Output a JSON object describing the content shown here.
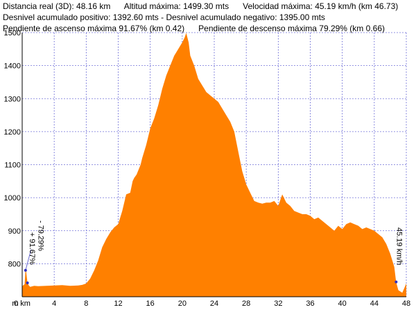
{
  "header": {
    "distance": "Distancia real (3D): 48.16 km",
    "max_altitude": "Altitud máxima: 1499.30 mts",
    "max_speed": "Velocidad máxima: 45.19 km/h (km 46.73)",
    "climb": "Desnivel acumulado positivo: 1392.60 mts - Desnivel acumulado negativo: 1395.00 mts",
    "max_ascent_slope": "Pendiente de ascenso máxima 91.67% (km 0.42)",
    "max_descent_slope": "Pendiente de descenso máxima 79.29% (km 0.66)"
  },
  "chart_data": {
    "type": "area",
    "x_unit": "km",
    "y_unit": "m",
    "xlim": [
      0,
      48
    ],
    "ylim": [
      700,
      1500
    ],
    "x_ticks": [
      0,
      4,
      8,
      12,
      16,
      20,
      24,
      28,
      32,
      36,
      40,
      44,
      48
    ],
    "y_ticks": [
      800,
      900,
      1000,
      1100,
      1200,
      1300,
      1400,
      1500
    ],
    "y_tick_labels": [
      "800",
      "900",
      "1000",
      "1100",
      "1200",
      "1300",
      "1400",
      "1500"
    ],
    "x_tick_labels": [
      "0 km",
      "4",
      "8",
      "12",
      "16",
      "20",
      "24",
      "28",
      "32",
      "36",
      "40",
      "44",
      "48"
    ],
    "axis_origin_label": "m",
    "grid": true,
    "fill_color": "#ff8000",
    "grid_color": "#7070d8",
    "x": [
      0,
      0.3,
      0.42,
      0.5,
      0.66,
      0.8,
      1,
      1.5,
      2,
      3,
      4,
      5,
      6,
      7,
      7.5,
      8,
      8.5,
      9,
      9.5,
      10,
      10.5,
      11,
      11.5,
      12,
      12.5,
      13,
      13.5,
      13.8,
      14,
      14.3,
      14.8,
      15,
      15.5,
      16,
      16.5,
      17,
      17.5,
      18,
      18.5,
      19,
      19.5,
      20,
      20.3,
      20.5,
      20.8,
      21,
      21.5,
      22,
      22.5,
      23,
      23.5,
      24,
      24.5,
      25,
      25.5,
      26,
      26.5,
      27,
      27.5,
      28,
      28.5,
      29,
      29.5,
      30,
      30.5,
      31,
      31.5,
      32,
      32.5,
      33,
      33.5,
      34,
      34.5,
      35,
      35.5,
      36,
      36.5,
      37,
      37.5,
      38,
      38.5,
      39,
      39.5,
      40,
      40.5,
      41,
      41.5,
      42,
      42.5,
      43,
      43.5,
      44,
      44.5,
      45,
      45.5,
      46,
      46.5,
      46.73,
      47,
      47.5,
      48
    ],
    "y": [
      732,
      738,
      780,
      775,
      742,
      735,
      730,
      733,
      732,
      733,
      734,
      735,
      733,
      734,
      736,
      740,
      755,
      780,
      810,
      850,
      875,
      895,
      910,
      920,
      960,
      1010,
      1015,
      1050,
      1060,
      1070,
      1100,
      1120,
      1160,
      1210,
      1240,
      1280,
      1330,
      1370,
      1400,
      1430,
      1450,
      1470,
      1485,
      1499,
      1470,
      1430,
      1400,
      1360,
      1340,
      1320,
      1310,
      1300,
      1290,
      1270,
      1250,
      1230,
      1200,
      1140,
      1080,
      1040,
      1015,
      990,
      985,
      982,
      985,
      985,
      990,
      975,
      1010,
      985,
      975,
      960,
      955,
      950,
      950,
      945,
      935,
      940,
      930,
      920,
      910,
      900,
      915,
      905,
      920,
      925,
      920,
      915,
      905,
      910,
      905,
      900,
      890,
      880,
      860,
      830,
      790,
      745,
      720,
      712,
      740
    ],
    "annotations": [
      {
        "text": "- 79.29%",
        "x": 0.66,
        "y": 742
      },
      {
        "text": "+ 91.67%",
        "x": 0.42,
        "y": 780
      },
      {
        "text": "45.19 km/h",
        "x": 46.73,
        "y": 745
      }
    ]
  }
}
